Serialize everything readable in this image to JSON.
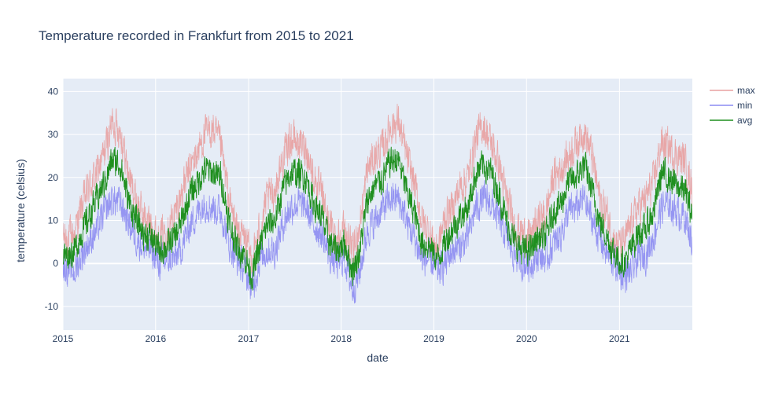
{
  "chart_data": {
    "type": "line",
    "title": "Temperature recorded in Frankfurt from 2015 to 2021",
    "xlabel": "date",
    "ylabel": "temperature (celsius)",
    "x_range": [
      "2015-01-01",
      "2021-10-15"
    ],
    "ylim": [
      -15.5,
      43
    ],
    "x_ticks": [
      "2015",
      "2016",
      "2017",
      "2018",
      "2019",
      "2020",
      "2021"
    ],
    "y_ticks": [
      -10,
      0,
      10,
      20,
      30,
      40
    ],
    "grid": true,
    "legend_position": "top-right",
    "legend": [
      "max",
      "min",
      "avg"
    ],
    "colors": {
      "max": "#e8a0a0",
      "min": "#8c8cf2",
      "avg": "#1f8f1f",
      "plot_bg": "#e5ecf6",
      "grid": "#ffffff"
    },
    "series_monthly": {
      "months": [
        "2015-01",
        "2015-02",
        "2015-03",
        "2015-04",
        "2015-05",
        "2015-06",
        "2015-07",
        "2015-08",
        "2015-09",
        "2015-10",
        "2015-11",
        "2015-12",
        "2016-01",
        "2016-02",
        "2016-03",
        "2016-04",
        "2016-05",
        "2016-06",
        "2016-07",
        "2016-08",
        "2016-09",
        "2016-10",
        "2016-11",
        "2016-12",
        "2017-01",
        "2017-02",
        "2017-03",
        "2017-04",
        "2017-05",
        "2017-06",
        "2017-07",
        "2017-08",
        "2017-09",
        "2017-10",
        "2017-11",
        "2017-12",
        "2018-01",
        "2018-02",
        "2018-03",
        "2018-04",
        "2018-05",
        "2018-06",
        "2018-07",
        "2018-08",
        "2018-09",
        "2018-10",
        "2018-11",
        "2018-12",
        "2019-01",
        "2019-02",
        "2019-03",
        "2019-04",
        "2019-05",
        "2019-06",
        "2019-07",
        "2019-08",
        "2019-09",
        "2019-10",
        "2019-11",
        "2019-12",
        "2020-01",
        "2020-02",
        "2020-03",
        "2020-04",
        "2020-05",
        "2020-06",
        "2020-07",
        "2020-08",
        "2020-09",
        "2020-10",
        "2020-11",
        "2020-12",
        "2021-01",
        "2021-02",
        "2021-03",
        "2021-04",
        "2021-05",
        "2021-06",
        "2021-07",
        "2021-08",
        "2021-09",
        "2021-10"
      ],
      "max": [
        6,
        7,
        13,
        18,
        21,
        26,
        33,
        31,
        21,
        15,
        11,
        9,
        6,
        8,
        11,
        17,
        22,
        26,
        30,
        31,
        27,
        15,
        8,
        6,
        1,
        8,
        15,
        17,
        24,
        29,
        28,
        27,
        20,
        16,
        9,
        6,
        8,
        2,
        9,
        22,
        25,
        27,
        32,
        33,
        25,
        19,
        10,
        7,
        3,
        11,
        13,
        18,
        20,
        29,
        32,
        28,
        23,
        15,
        9,
        7,
        6,
        10,
        11,
        20,
        22,
        25,
        28,
        31,
        25,
        15,
        11,
        5,
        4,
        9,
        13,
        15,
        19,
        28,
        27,
        25,
        24,
        17
      ],
      "min": [
        -1,
        -2,
        2,
        5,
        8,
        12,
        15,
        14,
        10,
        6,
        4,
        3,
        0,
        1,
        1,
        4,
        9,
        12,
        14,
        13,
        12,
        5,
        1,
        -1,
        -6,
        1,
        3,
        3,
        9,
        13,
        14,
        13,
        9,
        7,
        2,
        0,
        1,
        -6,
        -2,
        8,
        10,
        13,
        15,
        15,
        10,
        6,
        1,
        1,
        -2,
        0,
        3,
        4,
        6,
        13,
        15,
        14,
        10,
        6,
        2,
        0,
        0,
        2,
        1,
        4,
        7,
        12,
        13,
        15,
        10,
        6,
        2,
        0,
        -3,
        -2,
        1,
        2,
        6,
        13,
        14,
        12,
        11,
        5
      ],
      "avg": [
        2,
        3,
        7,
        11,
        15,
        19,
        24,
        23,
        15,
        10,
        7,
        6,
        3,
        4,
        6,
        10,
        16,
        19,
        22,
        21,
        20,
        10,
        4,
        2,
        -3,
        4,
        9,
        10,
        17,
        21,
        21,
        20,
        14,
        11,
        5,
        3,
        5,
        -2,
        3,
        15,
        18,
        20,
        24,
        24,
        17,
        12,
        5,
        4,
        1,
        5,
        8,
        11,
        13,
        21,
        23,
        21,
        16,
        10,
        5,
        3,
        3,
        6,
        6,
        12,
        14,
        19,
        20,
        23,
        17,
        10,
        6,
        2,
        0,
        3,
        7,
        8,
        12,
        21,
        20,
        18,
        17,
        11
      ]
    }
  }
}
